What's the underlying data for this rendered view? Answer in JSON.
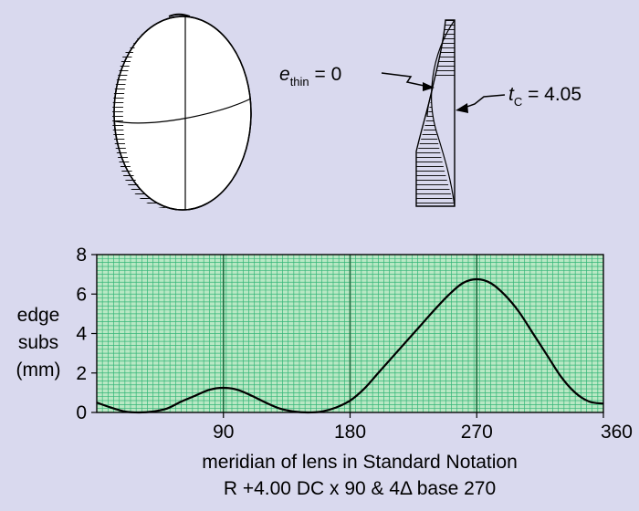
{
  "colors": {
    "background": "#d9d9ee",
    "plot_fill": "#b9e8c4",
    "grid_line": "#33b577",
    "curve": "#000000",
    "hatch": "#000000"
  },
  "annotations": {
    "e_thin_symbol": "e",
    "e_thin_subscript": "thin",
    "e_thin_value": " =  0",
    "t_c_symbol": "t",
    "t_c_subscript": "C",
    "t_c_value": " = 4.05"
  },
  "chart_data": {
    "type": "line",
    "title": "",
    "ylabel": [
      "edge",
      "subs",
      "(mm)"
    ],
    "xlabel": [
      "meridian of lens in Standard Notation",
      "R +4.00 DC x 90 & 4Δ base 270"
    ],
    "xlim": [
      0,
      360
    ],
    "ylim": [
      0,
      8
    ],
    "x_ticks": [
      90,
      180,
      270,
      360
    ],
    "x_tick_labels": [
      "90",
      "180",
      "270",
      "360"
    ],
    "y_ticks": [
      0,
      2,
      4,
      6,
      8
    ],
    "y_tick_labels": [
      "0",
      "2",
      "4",
      "6",
      "8"
    ],
    "grid": true,
    "series": [
      {
        "x": [
          0,
          10,
          20,
          30,
          40,
          50,
          60,
          70,
          80,
          90,
          100,
          110,
          120,
          130,
          140,
          150,
          160,
          170,
          180,
          190,
          200,
          210,
          220,
          230,
          240,
          250,
          260,
          270,
          280,
          290,
          300,
          310,
          320,
          330,
          340,
          350,
          360
        ],
        "values": [
          0.5,
          0.25,
          0.05,
          0.0,
          0.05,
          0.2,
          0.55,
          0.85,
          1.15,
          1.25,
          1.15,
          0.85,
          0.5,
          0.2,
          0.05,
          0.0,
          0.05,
          0.25,
          0.6,
          1.2,
          2.0,
          2.8,
          3.6,
          4.4,
          5.2,
          5.95,
          6.55,
          6.75,
          6.55,
          5.95,
          5.1,
          4.0,
          2.9,
          1.8,
          1.0,
          0.55,
          0.45
        ]
      }
    ]
  }
}
